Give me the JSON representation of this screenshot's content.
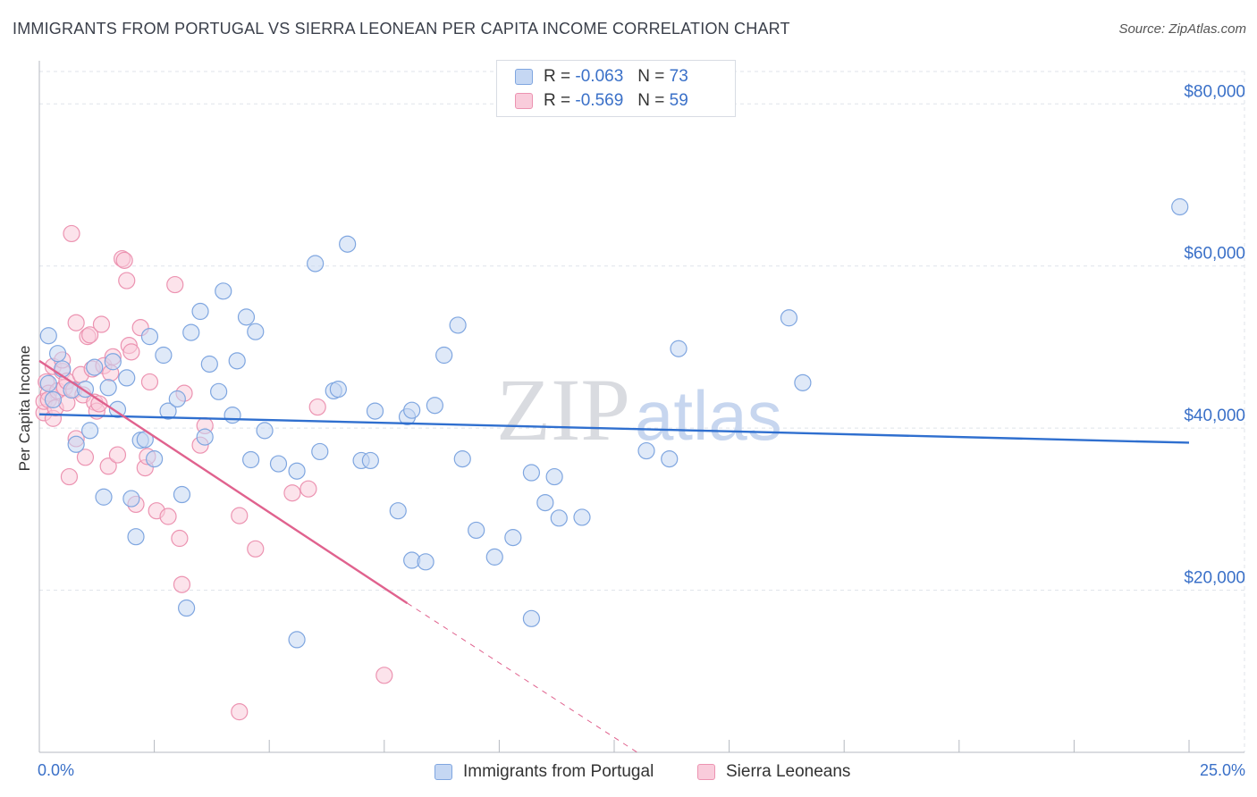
{
  "header": {
    "title": "IMMIGRANTS FROM PORTUGAL VS SIERRA LEONEAN PER CAPITA INCOME CORRELATION CHART",
    "source": "Source: ZipAtlas.com"
  },
  "watermark": {
    "zip": "ZIP",
    "atlas": "atlas"
  },
  "legend": {
    "rows": [
      {
        "r_label": "R =",
        "r_value": "-0.063",
        "n_label": "N =",
        "n_value": "73",
        "color": "#a8c4ee"
      },
      {
        "r_label": "R =",
        "r_value": "-0.569",
        "n_label": "N =",
        "n_value": "59",
        "color": "#f4b8cc"
      }
    ]
  },
  "colors": {
    "blue_fill": "#c5d7f3",
    "blue_stroke": "#7fa6e0",
    "blue_line": "#2f6fcf",
    "pink_fill": "#f9ccdb",
    "pink_stroke": "#ec93b1",
    "pink_line": "#e0628e",
    "tick_label": "#3a70c8",
    "grid": "#dfe3ea"
  },
  "chart_data": {
    "type": "scatter",
    "title": "IMMIGRANTS FROM PORTUGAL VS SIERRA LEONEAN PER CAPITA INCOME CORRELATION CHART",
    "xlabel": "",
    "ylabel": "Per Capita Income",
    "xlim": [
      0,
      25
    ],
    "ylim": [
      0,
      84000
    ],
    "x_tick_labels": [
      "0.0%",
      "25.0%"
    ],
    "y_ticks": [
      20000,
      40000,
      60000,
      80000
    ],
    "y_tick_labels": [
      "$20,000",
      "$40,000",
      "$60,000",
      "$80,000"
    ],
    "grid": true,
    "legend_position": "top-center",
    "series": [
      {
        "name": "Immigrants from Portugal",
        "r": -0.063,
        "n": 73,
        "trend": {
          "x": [
            0,
            25
          ],
          "y": [
            41700,
            38200
          ]
        },
        "points": [
          [
            0.2,
            45500
          ],
          [
            0.2,
            51400
          ],
          [
            0.4,
            49200
          ],
          [
            0.5,
            47300
          ],
          [
            0.7,
            44700
          ],
          [
            0.8,
            38000
          ],
          [
            1.1,
            39700
          ],
          [
            1.2,
            47500
          ],
          [
            1.4,
            31500
          ],
          [
            1.5,
            45000
          ],
          [
            1.6,
            48200
          ],
          [
            1.7,
            42300
          ],
          [
            1.9,
            46200
          ],
          [
            2.0,
            31300
          ],
          [
            2.1,
            26600
          ],
          [
            2.2,
            38500
          ],
          [
            2.3,
            38600
          ],
          [
            2.4,
            51300
          ],
          [
            2.5,
            36200
          ],
          [
            2.7,
            49000
          ],
          [
            2.8,
            42100
          ],
          [
            3.0,
            43600
          ],
          [
            3.1,
            31800
          ],
          [
            3.2,
            17800
          ],
          [
            3.3,
            51800
          ],
          [
            3.5,
            54400
          ],
          [
            3.6,
            38900
          ],
          [
            3.7,
            47900
          ],
          [
            3.9,
            44500
          ],
          [
            4.0,
            56900
          ],
          [
            4.2,
            41600
          ],
          [
            4.3,
            48300
          ],
          [
            4.5,
            53700
          ],
          [
            4.6,
            36100
          ],
          [
            4.7,
            51900
          ],
          [
            4.9,
            39700
          ],
          [
            5.2,
            35600
          ],
          [
            5.6,
            34700
          ],
          [
            5.6,
            13900
          ],
          [
            6.0,
            60300
          ],
          [
            6.1,
            37100
          ],
          [
            6.4,
            44600
          ],
          [
            6.5,
            44800
          ],
          [
            6.7,
            62700
          ],
          [
            7.0,
            36000
          ],
          [
            7.2,
            36000
          ],
          [
            7.3,
            42100
          ],
          [
            7.8,
            29800
          ],
          [
            8.0,
            41400
          ],
          [
            8.1,
            42200
          ],
          [
            8.1,
            23700
          ],
          [
            8.4,
            23500
          ],
          [
            8.6,
            42800
          ],
          [
            8.8,
            49000
          ],
          [
            9.1,
            52700
          ],
          [
            9.2,
            36200
          ],
          [
            9.5,
            27400
          ],
          [
            9.9,
            24100
          ],
          [
            10.3,
            26500
          ],
          [
            10.7,
            34500
          ],
          [
            10.7,
            16500
          ],
          [
            11.0,
            30800
          ],
          [
            11.2,
            34000
          ],
          [
            11.3,
            28900
          ],
          [
            11.8,
            29000
          ],
          [
            13.2,
            37200
          ],
          [
            13.7,
            36200
          ],
          [
            13.9,
            49800
          ],
          [
            16.3,
            53600
          ],
          [
            16.6,
            45600
          ],
          [
            24.8,
            67300
          ],
          [
            0.3,
            43500
          ],
          [
            1.0,
            44800
          ]
        ]
      },
      {
        "name": "Sierra Leoneans",
        "r": -0.569,
        "n": 59,
        "trend_solid": {
          "x": [
            0,
            8.0
          ],
          "y": [
            48300,
            18400
          ]
        },
        "trend_dashed": {
          "x": [
            8.0,
            13.0
          ],
          "y": [
            18400,
            0
          ]
        },
        "points": [
          [
            0.1,
            41900
          ],
          [
            0.1,
            43300
          ],
          [
            0.15,
            45700
          ],
          [
            0.2,
            44300
          ],
          [
            0.2,
            43500
          ],
          [
            0.3,
            41200
          ],
          [
            0.3,
            47600
          ],
          [
            0.35,
            42500
          ],
          [
            0.4,
            44600
          ],
          [
            0.5,
            47000
          ],
          [
            0.5,
            48400
          ],
          [
            0.55,
            45000
          ],
          [
            0.6,
            43100
          ],
          [
            0.6,
            45800
          ],
          [
            0.65,
            34000
          ],
          [
            0.7,
            64000
          ],
          [
            0.75,
            44700
          ],
          [
            0.8,
            53000
          ],
          [
            0.8,
            38700
          ],
          [
            0.9,
            46600
          ],
          [
            0.95,
            44100
          ],
          [
            1.0,
            36400
          ],
          [
            1.05,
            51300
          ],
          [
            1.1,
            51500
          ],
          [
            1.15,
            47300
          ],
          [
            1.2,
            43200
          ],
          [
            1.25,
            42100
          ],
          [
            1.3,
            43000
          ],
          [
            1.35,
            52800
          ],
          [
            1.4,
            47700
          ],
          [
            1.5,
            35300
          ],
          [
            1.55,
            46800
          ],
          [
            1.6,
            48800
          ],
          [
            1.7,
            36700
          ],
          [
            1.8,
            60900
          ],
          [
            1.85,
            60700
          ],
          [
            1.9,
            58200
          ],
          [
            1.95,
            50200
          ],
          [
            2.0,
            49400
          ],
          [
            2.1,
            30600
          ],
          [
            2.2,
            52400
          ],
          [
            2.3,
            35100
          ],
          [
            2.35,
            36500
          ],
          [
            2.4,
            45700
          ],
          [
            2.55,
            29800
          ],
          [
            2.8,
            29100
          ],
          [
            2.95,
            57700
          ],
          [
            3.05,
            26400
          ],
          [
            3.1,
            20700
          ],
          [
            3.15,
            44300
          ],
          [
            3.5,
            37900
          ],
          [
            3.6,
            40300
          ],
          [
            4.35,
            29200
          ],
          [
            4.35,
            5000
          ],
          [
            4.7,
            25100
          ],
          [
            5.5,
            32000
          ],
          [
            5.85,
            32500
          ],
          [
            6.05,
            42600
          ],
          [
            7.5,
            9500
          ]
        ]
      }
    ]
  },
  "bottom_legend": {
    "items": [
      {
        "label": "Immigrants from Portugal"
      },
      {
        "label": "Sierra Leoneans"
      }
    ]
  }
}
